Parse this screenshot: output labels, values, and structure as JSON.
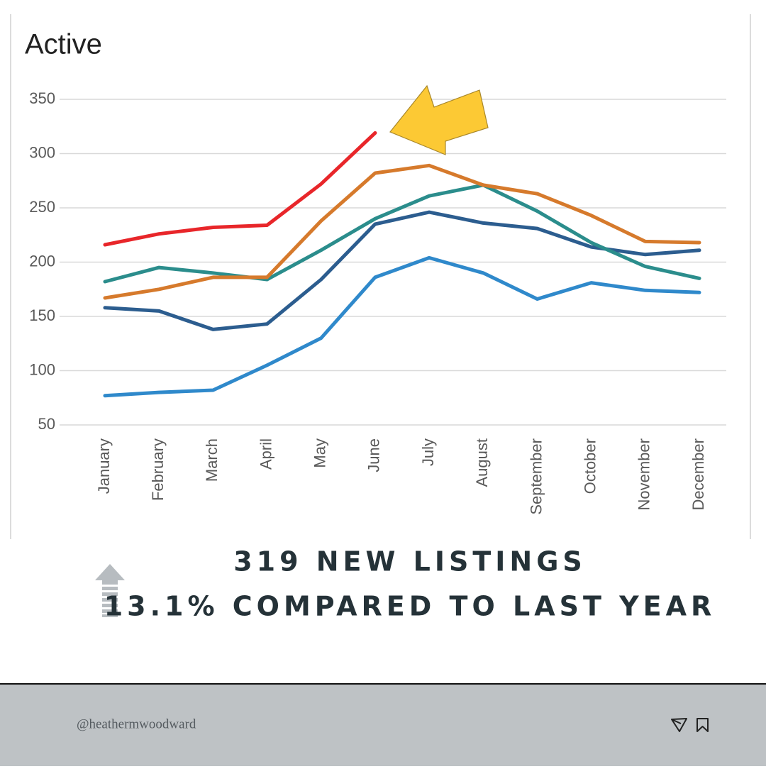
{
  "chart_data": {
    "type": "line",
    "title": "Active",
    "categories": [
      "January",
      "February",
      "March",
      "April",
      "May",
      "June",
      "July",
      "August",
      "September",
      "October",
      "November",
      "December"
    ],
    "series": [
      {
        "color": "#e8262a",
        "values": [
          216,
          226,
          232,
          234,
          272,
          319,
          null,
          null,
          null,
          null,
          null,
          null
        ]
      },
      {
        "color": "#d67a2c",
        "values": [
          167,
          175,
          186,
          186,
          238,
          282,
          289,
          271,
          263,
          243,
          219,
          218
        ]
      },
      {
        "color": "#2b8d8c",
        "values": [
          182,
          195,
          190,
          184,
          211,
          240,
          261,
          271,
          247,
          218,
          196,
          185
        ]
      },
      {
        "color": "#2c5d8f",
        "values": [
          158,
          155,
          138,
          143,
          184,
          235,
          246,
          236,
          231,
          214,
          207,
          211
        ]
      },
      {
        "color": "#2f89cb",
        "values": [
          77,
          80,
          82,
          105,
          130,
          186,
          204,
          190,
          166,
          181,
          174,
          172
        ]
      }
    ],
    "ylim": [
      50,
      350
    ],
    "yticks": [
      50,
      100,
      150,
      200,
      250,
      300,
      350
    ],
    "grid": true
  },
  "caption": {
    "lines": [
      "319 NEW LISTINGS",
      "13.1% COMPARED TO LAST YEAR"
    ]
  },
  "footer": {
    "handle": "@heathermwoodward"
  }
}
